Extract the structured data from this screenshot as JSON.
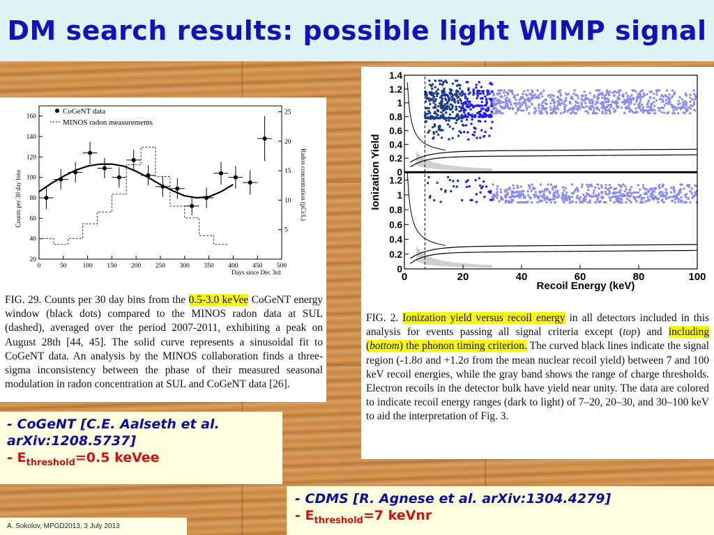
{
  "slide": {
    "title": "DM search results: possible light WIMP signal",
    "footer": "A. Sokolov, MPGD2013, 3 July 2013"
  },
  "cogent_plot": {
    "legend_data": "CoGeNT data",
    "legend_radon": "MINOS radon measurements",
    "ylabel_left": "Counts per 30 day bins",
    "ylabel_right": "Radon concentration (pCi/L)",
    "xlabel": "Days since Dec 3rd",
    "caption_pre": "FIG. 29. Counts per 30 day bins from the ",
    "caption_highlight": "0.5-3.0 keVee",
    "caption_post": " CoGeNT energy window (black dots) compared to the MINOS radon data at SUL (dashed), averaged over the period 2007-2011, exhibiting a peak on August 28th [44, 45]. The solid curve represents a sinusoidal fit to CoGeNT data. An analysis by the MINOS collaboration finds a three-sigma inconsistency between the phase of their measured seasonal modulation in radon concentration at SUL and CoGeNT data [26]."
  },
  "cdms_plot": {
    "ylabel": "Ionization Yield",
    "xlabel": "Recoil Energy (keV)",
    "caption_fig": "FIG. 2. ",
    "caption_hl1": "Ionization yield versus recoil energy",
    "caption_mid1": " in all detectors included in this analysis for events passing all signal criteria except (",
    "caption_top": "top",
    "caption_mid2": ") and ",
    "caption_hl2a": "including (",
    "caption_bottom": "bottom",
    "caption_hl2b": ") the phonon timing criterion.",
    "caption_post": " The curved black lines indicate the signal region (-1.8σ and +1.2σ from the mean nuclear recoil yield) between 7 and 100 keV recoil energies, while the gray band shows the range of charge thresholds. Electron recoils in the detector bulk have yield near unity. The data are colored to indicate recoil energy ranges (dark to light) of 7–20, 20–30, and 30–100 keV to aid the interpretation of Fig. 3."
  },
  "cogent_citation": {
    "line1": "- CoGeNT [C.E. Aalseth et al. arXiv:1208.5737]",
    "thr_prefix": "- E",
    "thr_sub": "threshold",
    "thr_value": "=0.5 keVee"
  },
  "cdms_citation": {
    "line1": "- CDMS [R. Agnese et al. arXiv:1304.4279]",
    "thr_prefix": "- E",
    "thr_sub": "threshold",
    "thr_value": "=7 keVnr"
  },
  "colors": {
    "title": "#1212b8",
    "highlight": "#f5f51a",
    "cdms_dark": "#1a3a8c",
    "cdms_mid": "#1d1dff",
    "cdms_light": "#8c8cf0"
  },
  "chart_data": [
    {
      "type": "scatter",
      "x_ticks": [
        "0",
        "50",
        "100",
        "150",
        "200",
        "250",
        "300",
        "350",
        "400",
        "450",
        "500"
      ],
      "y_ticks": [
        "20",
        "40",
        "60",
        "80",
        "100",
        "120",
        "140",
        "160"
      ],
      "y2_ticks": [
        "5",
        "10",
        "15",
        "20",
        "25"
      ],
      "xlim": [
        0,
        500
      ],
      "ylim": [
        20,
        170
      ],
      "y2lim": [
        0,
        26
      ],
      "series": [
        {
          "name": "CoGeNT data",
          "x": [
            15,
            45,
            75,
            105,
            135,
            165,
            195,
            225,
            255,
            285,
            315,
            345,
            375,
            405,
            435,
            465
          ],
          "y": [
            80,
            98,
            105,
            124,
            109,
            100,
            117,
            102,
            91,
            89,
            72,
            80,
            104,
            100,
            95,
            138
          ],
          "xerr": [
            15,
            15,
            15,
            15,
            15,
            15,
            15,
            15,
            15,
            15,
            15,
            15,
            15,
            15,
            15,
            15
          ],
          "yerr": [
            11,
            10,
            10,
            11,
            10,
            10,
            10,
            10,
            10,
            10,
            9,
            10,
            11,
            11,
            12,
            22
          ]
        },
        {
          "name": "MINOS radon measurements",
          "x": [
            0,
            30,
            60,
            90,
            120,
            150,
            180,
            210,
            240,
            270,
            300,
            330,
            360
          ],
          "y2": [
            3.5,
            2.5,
            3.5,
            6,
            8,
            11,
            16,
            19,
            14,
            9,
            7,
            4,
            2.5
          ]
        },
        {
          "name": "fit",
          "x": [
            0,
            25,
            50,
            75,
            100,
            125,
            150,
            175,
            200,
            225,
            250,
            275,
            300,
            325,
            350,
            375,
            400
          ],
          "y": [
            86,
            94,
            101,
            107,
            111,
            113,
            113,
            111,
            106,
            100,
            93,
            87,
            82,
            80,
            81,
            86,
            93
          ]
        }
      ]
    },
    {
      "type": "scatter",
      "x_ticks": [
        "0",
        "20",
        "40",
        "60",
        "80",
        "100"
      ],
      "y_ticks_top": [
        "0",
        "0.2",
        "0.4",
        "0.6",
        "0.8",
        "1",
        "1.2",
        "1.4"
      ],
      "y_ticks_bottom": [
        "0",
        "0.2",
        "0.4",
        "0.6",
        "0.8",
        "1",
        "1.2"
      ],
      "xlim": [
        0,
        100
      ],
      "threshold_keV": 7,
      "series": [
        {
          "name": "7-20 keV",
          "color": "#1a3a8c"
        },
        {
          "name": "20-30 keV",
          "color": "#1d1dff"
        },
        {
          "name": "30-100 keV",
          "color": "#8c8cf0"
        }
      ]
    }
  ]
}
